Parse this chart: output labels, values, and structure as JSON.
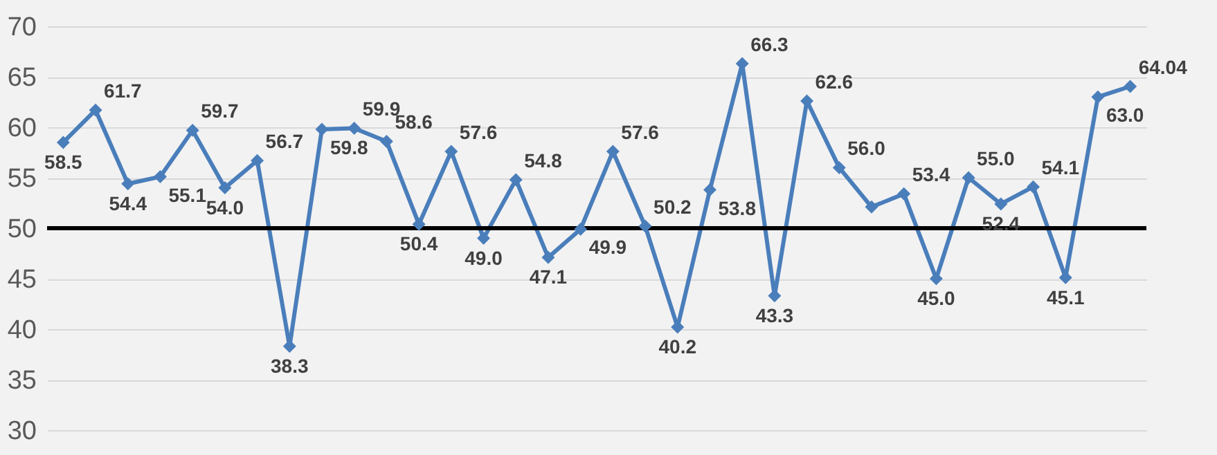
{
  "chart_data": {
    "type": "line",
    "categories": [
      null,
      null,
      null,
      null,
      null,
      null,
      null,
      null,
      null,
      null,
      null,
      null,
      null,
      null,
      null,
      null,
      null,
      null,
      null,
      null,
      null,
      null,
      null,
      null,
      null,
      null,
      null,
      null,
      null,
      null,
      null,
      null,
      null,
      null
    ],
    "series": [
      {
        "color": "#4a7ebb",
        "values": [
          58.5,
          61.7,
          54.4,
          55.1,
          59.7,
          54.0,
          56.7,
          38.3,
          59.8,
          59.9,
          58.6,
          50.4,
          57.6,
          49.0,
          54.8,
          47.1,
          49.9,
          57.6,
          50.2,
          40.2,
          53.8,
          66.3,
          43.3,
          62.6,
          56.0,
          52.1,
          53.4,
          45.0,
          55.0,
          52.4,
          54.1,
          45.1,
          63.0,
          64.04
        ],
        "value_labels": [
          "58.5",
          "61.7",
          "54.4",
          "55.1",
          "59.7",
          "54.0",
          "56.7",
          "38.3",
          "59.8",
          "59.9",
          "58.6",
          "50.4",
          "57.6",
          "49.0",
          "54.8",
          "47.1",
          "49.9",
          "57.6",
          "50.2",
          "40.2",
          "53.8",
          "66.3",
          "43.3",
          "62.6",
          "56.0",
          null,
          "53.4",
          "45.0",
          "55.0",
          "52.4",
          "54.1",
          "45.1",
          "63.0",
          "64.04"
        ]
      }
    ],
    "ylim": [
      30,
      70
    ],
    "yticks": [
      30,
      35,
      40,
      45,
      50,
      55,
      60,
      65,
      70
    ],
    "grid": "y",
    "marker": "diamond",
    "line_style": "solid",
    "ref_lines": [
      {
        "axis": "y",
        "value": 50,
        "color": "#000000"
      }
    ]
  }
}
